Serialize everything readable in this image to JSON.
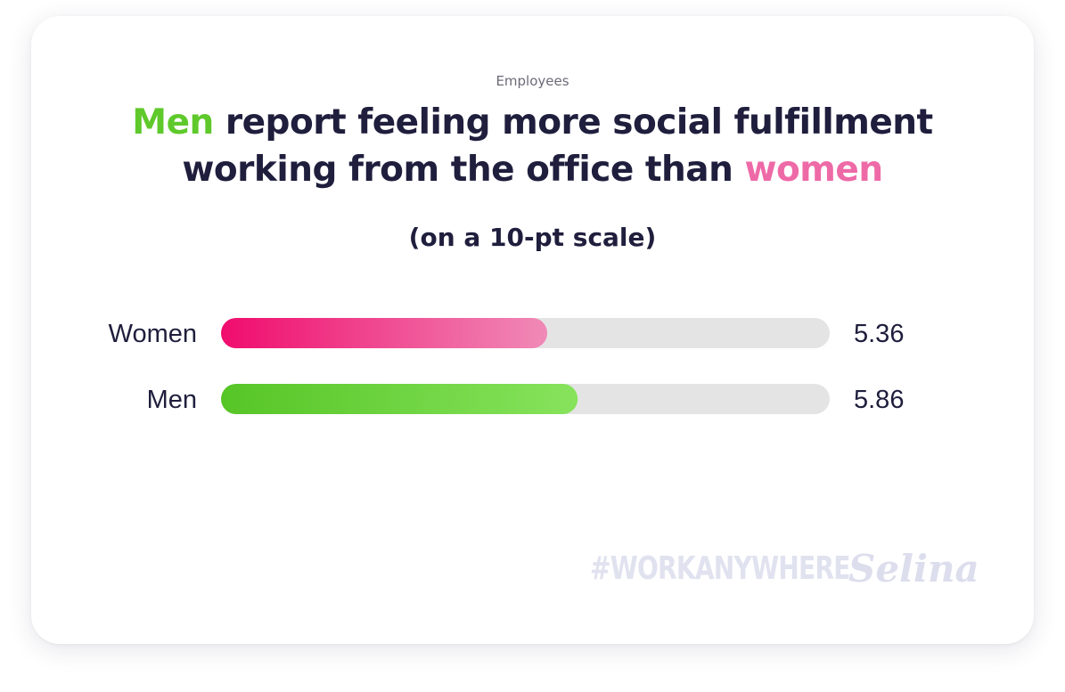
{
  "header": {
    "eyebrow": "Employees",
    "title_line1_accent": "Men",
    "title_line1_rest": " report feeling more social fulfillment",
    "title_line2_start": "working from the office than ",
    "title_line2_accent": "women",
    "subtitle": "(on a 10-pt scale)"
  },
  "footer": {
    "hashtag": "#WORKANYWHERE",
    "brand": "Selina"
  },
  "colors": {
    "men_accent": "#5fc92b",
    "women_accent": "#ee6aa7",
    "track": "#e4e4e4",
    "text": "#1f1e3d"
  },
  "chart_data": {
    "type": "bar",
    "orientation": "horizontal",
    "categories": [
      "Women",
      "Men"
    ],
    "values": [
      5.36,
      5.86
    ],
    "value_labels": [
      "5.36",
      "5.86"
    ],
    "xlim": [
      0,
      10
    ],
    "grid": false,
    "series_colors": [
      [
        "#f00c6d",
        "#f08ab7"
      ],
      [
        "#56c526",
        "#87e35c"
      ]
    ]
  }
}
